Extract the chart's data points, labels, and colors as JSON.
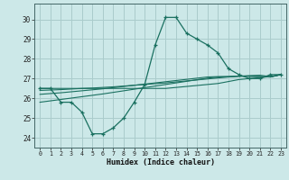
{
  "xlabel": "Humidex (Indice chaleur)",
  "bg_color": "#cce8e8",
  "grid_color": "#aacccc",
  "line_color": "#1a7060",
  "xlim": [
    -0.5,
    23.5
  ],
  "ylim": [
    23.5,
    30.8
  ],
  "xticks": [
    0,
    1,
    2,
    3,
    4,
    5,
    6,
    7,
    8,
    9,
    10,
    11,
    12,
    13,
    14,
    15,
    16,
    17,
    18,
    19,
    20,
    21,
    22,
    23
  ],
  "yticks": [
    24,
    25,
    26,
    27,
    28,
    29,
    30
  ],
  "main_curve": [
    26.5,
    26.5,
    25.8,
    25.8,
    25.3,
    24.2,
    24.2,
    24.5,
    25.0,
    25.8,
    26.7,
    28.7,
    30.1,
    30.1,
    29.3,
    29.0,
    28.7,
    28.3,
    27.5,
    27.2,
    27.0,
    27.0,
    27.2,
    27.2
  ],
  "trend_lines": [
    [
      26.5,
      26.5,
      26.5,
      26.5,
      26.5,
      26.5,
      26.5,
      26.5,
      26.5,
      26.5,
      26.5,
      26.5,
      26.5,
      26.55,
      26.6,
      26.65,
      26.7,
      26.75,
      26.85,
      26.95,
      27.0,
      27.05,
      27.1,
      27.2
    ],
    [
      26.4,
      26.42,
      26.44,
      26.47,
      26.5,
      26.52,
      26.55,
      26.58,
      26.62,
      26.66,
      26.7,
      26.74,
      26.78,
      26.83,
      26.88,
      26.93,
      26.98,
      27.03,
      27.08,
      27.12,
      27.15,
      27.17,
      27.1,
      27.2
    ],
    [
      26.2,
      26.24,
      26.28,
      26.33,
      26.38,
      26.43,
      26.48,
      26.54,
      26.6,
      26.66,
      26.72,
      26.78,
      26.84,
      26.9,
      26.96,
      27.02,
      27.08,
      27.1,
      27.1,
      27.12,
      27.12,
      27.1,
      27.08,
      27.2
    ],
    [
      25.8,
      25.87,
      25.94,
      26.01,
      26.08,
      26.15,
      26.22,
      26.3,
      26.38,
      26.46,
      26.54,
      26.62,
      26.7,
      26.78,
      26.86,
      26.94,
      27.02,
      27.08,
      27.1,
      27.12,
      27.12,
      27.1,
      27.08,
      27.2
    ]
  ]
}
